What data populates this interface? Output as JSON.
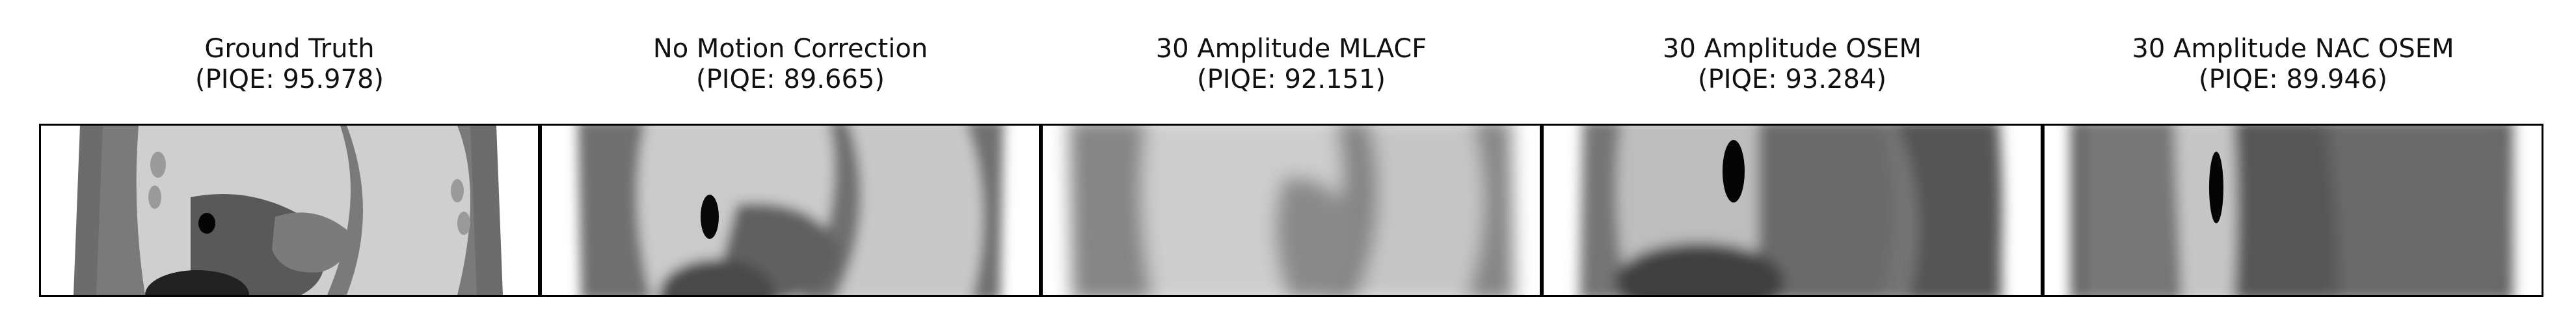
{
  "panels": [
    {
      "line1": "Ground Truth",
      "line2": "(PIQE: 95.978)"
    },
    {
      "line1": "No Motion Correction",
      "line2": "(PIQE: 89.665)"
    },
    {
      "line1": "30 Amplitude MLACF",
      "line2": "(PIQE: 92.151)"
    },
    {
      "line1": "30 Amplitude OSEM",
      "line2": "(PIQE: 93.284)"
    },
    {
      "line1": "30 Amplitude NAC OSEM",
      "line2": "(PIQE: 89.946)"
    }
  ]
}
